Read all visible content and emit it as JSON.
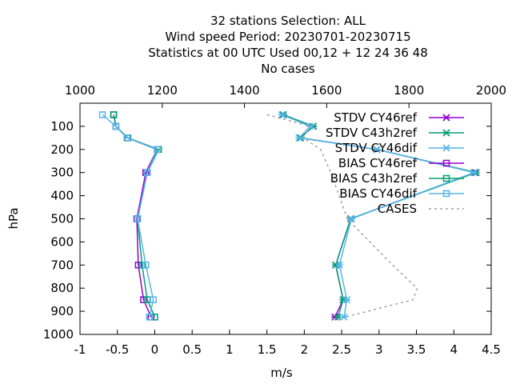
{
  "header": {
    "title_lines": [
      "32 stations Selection: ALL",
      "Wind speed  Period: 20230701-20230715",
      "Statistics at 00 UTC  Used  00,12  + 12 24 36 48",
      "No cases"
    ]
  },
  "chart_data": {
    "type": "line",
    "xlabel": "m/s",
    "ylabel": "hPa",
    "x2label": "",
    "xlim": [
      -1,
      4.5
    ],
    "x2lim": [
      1000,
      2000
    ],
    "ylim": [
      1000,
      0
    ],
    "xticks": [
      "-1",
      "-0.5",
      "0",
      "0.5",
      "1",
      "1.5",
      "2",
      "2.5",
      "3",
      "3.5",
      "4",
      "4.5"
    ],
    "x2ticks": [
      "1000",
      "1200",
      "1400",
      "1600",
      "1800",
      "2000"
    ],
    "yticks": [
      "100",
      "200",
      "300",
      "400",
      "500",
      "600",
      "700",
      "800",
      "900",
      "1000"
    ],
    "grid": false,
    "legend_position": "top-right",
    "pressure_levels": [
      50,
      100,
      150,
      200,
      300,
      500,
      700,
      850,
      925
    ],
    "series": [
      {
        "name": "STDV CY46ref",
        "color": "#9400d3",
        "marker": "x-star",
        "axis": "x",
        "values": [
          1.72,
          2.12,
          1.95,
          2.97,
          4.28,
          2.62,
          2.42,
          2.52,
          2.41
        ]
      },
      {
        "name": "STDV C43h2ref",
        "color": "#009e73",
        "marker": "x-star",
        "axis": "x",
        "values": [
          1.72,
          2.12,
          1.95,
          2.97,
          4.3,
          2.62,
          2.42,
          2.52,
          2.45
        ]
      },
      {
        "name": "STDV CY46dif",
        "color": "#56b4e9",
        "marker": "x-star",
        "axis": "x",
        "values": [
          1.7,
          2.08,
          1.93,
          2.97,
          4.27,
          2.63,
          2.47,
          2.57,
          2.53
        ]
      },
      {
        "name": "BIAS CY46ref",
        "color": "#9400d3",
        "marker": "square",
        "axis": "x",
        "values": [
          -0.55,
          -0.52,
          -0.37,
          0.03,
          -0.12,
          -0.24,
          -0.22,
          -0.15,
          -0.05
        ]
      },
      {
        "name": "BIAS C43h2ref",
        "color": "#009e73",
        "marker": "square",
        "axis": "x",
        "values": [
          -0.55,
          -0.52,
          -0.36,
          0.05,
          -0.1,
          -0.23,
          -0.17,
          -0.1,
          0.0
        ]
      },
      {
        "name": "BIAS CY46dif",
        "color": "#56b4e9",
        "marker": "square",
        "axis": "x",
        "values": [
          -0.7,
          -0.52,
          -0.37,
          0.03,
          -0.1,
          -0.23,
          -0.12,
          -0.02,
          -0.07
        ]
      },
      {
        "name": "CASES",
        "color": "#a0a0a0",
        "marker": "none",
        "dashed": true,
        "axis": "x2",
        "values": [
          1455,
          1560,
          1543,
          1585,
          1610,
          1650,
          1760,
          1820,
          1810,
          1645
        ]
      }
    ],
    "cases_levels": [
      50,
      100,
      150,
      200,
      300,
      500,
      700,
      800,
      850,
      925
    ]
  }
}
